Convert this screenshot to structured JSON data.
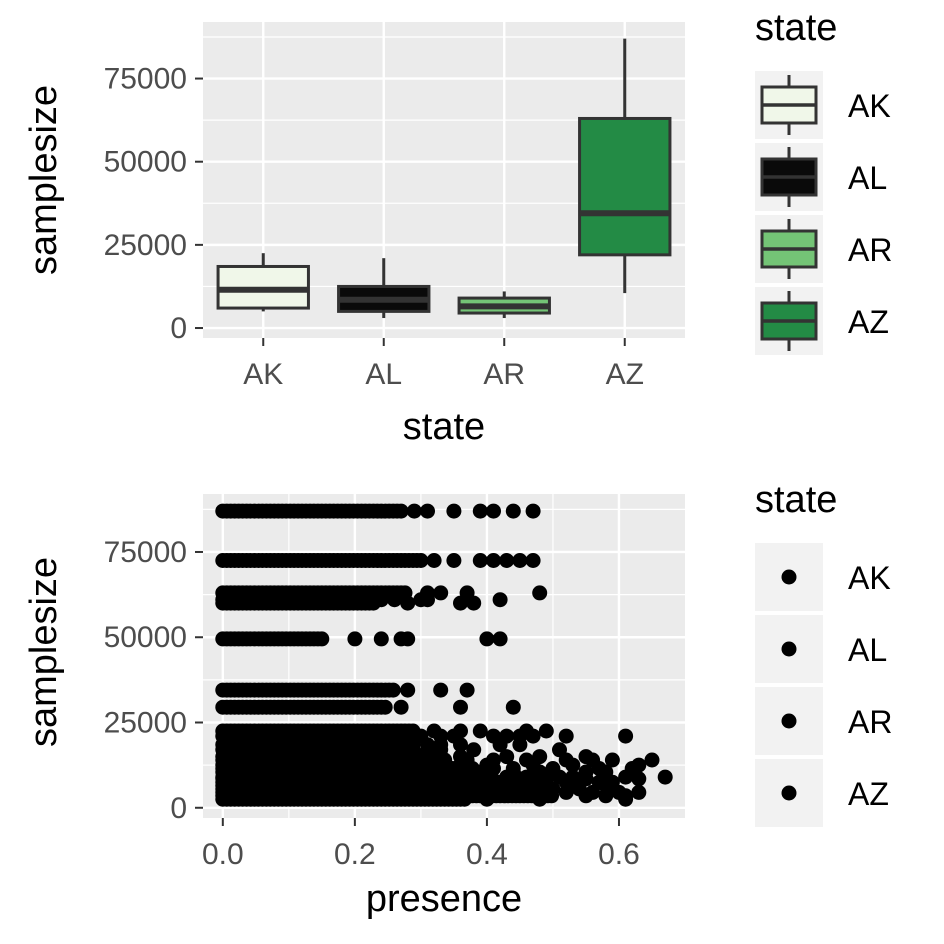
{
  "chart_data": [
    {
      "type": "box",
      "xlabel": "state",
      "ylabel": "samplesize",
      "categories": [
        "AK",
        "AL",
        "AR",
        "AZ"
      ],
      "ylim": [
        -3000,
        92000
      ],
      "yticks": [
        0,
        25000,
        50000,
        75000
      ],
      "grid": true,
      "legend": {
        "title": "state",
        "position": "right",
        "entries": [
          "AK",
          "AL",
          "AR",
          "AZ"
        ]
      },
      "boxes": [
        {
          "category": "AK",
          "min": 5000,
          "q1": 6000,
          "median": 11500,
          "q3": 18500,
          "max": 22500,
          "fill": "#f0f7e9"
        },
        {
          "category": "AL",
          "min": 3000,
          "q1": 5000,
          "median": 8500,
          "q3": 12500,
          "max": 21000,
          "fill": "#0a0a0a"
        },
        {
          "category": "AR",
          "min": 3000,
          "q1": 4500,
          "median": 6500,
          "q3": 9000,
          "max": 11000,
          "fill": "#74c476"
        },
        {
          "category": "AZ",
          "min": 10500,
          "q1": 22000,
          "median": 34500,
          "q3": 63000,
          "max": 87000,
          "fill": "#238b45"
        }
      ],
      "colors": {
        "panel": "#ebebeb",
        "outline": "#333333"
      }
    },
    {
      "type": "scatter",
      "xlabel": "presence",
      "ylabel": "samplesize",
      "xlim": [
        -0.03,
        0.7
      ],
      "ylim": [
        -3000,
        92000
      ],
      "xticks": [
        0.0,
        0.2,
        0.4,
        0.6
      ],
      "xtick_labels": [
        "0.0",
        "0.2",
        "0.4",
        "0.6"
      ],
      "yticks": [
        0,
        25000,
        50000,
        75000
      ],
      "grid": true,
      "legend": {
        "title": "state",
        "position": "right",
        "entries": [
          "AK",
          "AL",
          "AR",
          "AZ"
        ]
      },
      "point_color": "#000000",
      "bands": [
        {
          "y": 87000,
          "x_end": 0.27,
          "extra_x": [
            0.29,
            0.31,
            0.35,
            0.39,
            0.41,
            0.44,
            0.47
          ]
        },
        {
          "y": 72500,
          "x_end": 0.3,
          "extra_x": [
            0.32,
            0.35,
            0.39,
            0.41,
            0.43,
            0.45,
            0.47
          ]
        },
        {
          "y": 63000,
          "x_end": 0.28,
          "extra_x": [
            0.31,
            0.33,
            0.37,
            0.48
          ]
        },
        {
          "y": 61000,
          "x_end": 0.2,
          "extra_x": [
            0.22,
            0.24,
            0.26,
            0.3,
            0.31,
            0.42
          ]
        },
        {
          "y": 60000,
          "x_end": 0.23,
          "extra_x": [
            0.28,
            0.36,
            0.38
          ]
        },
        {
          "y": 49500,
          "x_end": 0.15,
          "extra_x": [
            0.2,
            0.24,
            0.27,
            0.28,
            0.4,
            0.42
          ]
        },
        {
          "y": 34500,
          "x_end": 0.26,
          "extra_x": [
            0.28,
            0.33,
            0.37
          ]
        },
        {
          "y": 29500,
          "x_end": 0.25,
          "extra_x": [
            0.27,
            0.36,
            0.44
          ]
        },
        {
          "y": 22500,
          "x_end": 0.29,
          "extra_x": [
            0.32,
            0.36,
            0.39,
            0.46,
            0.49
          ]
        },
        {
          "y": 21000,
          "x_end": 0.3,
          "extra_x": [
            0.33,
            0.35,
            0.41,
            0.43,
            0.45,
            0.47,
            0.52,
            0.61
          ]
        },
        {
          "y": 18500,
          "x_end": 0.29,
          "extra_x": [
            0.31,
            0.33,
            0.36,
            0.42,
            0.45
          ]
        },
        {
          "y": 17000,
          "x_end": 0.29,
          "extra_x": [
            0.31,
            0.33,
            0.38,
            0.51
          ]
        },
        {
          "y": 15000,
          "x_end": 0.33,
          "extra_x": [
            0.36,
            0.43,
            0.48,
            0.55
          ]
        },
        {
          "y": 14000,
          "x_end": 0.34,
          "extra_x": [
            0.37,
            0.41,
            0.46,
            0.52,
            0.56,
            0.59,
            0.65
          ]
        },
        {
          "y": 12500,
          "x_end": 0.33,
          "extra_x": [
            0.36,
            0.4,
            0.47,
            0.53,
            0.63
          ]
        },
        {
          "y": 11500,
          "x_end": 0.38,
          "extra_x": [
            0.41,
            0.44,
            0.5,
            0.57,
            0.62
          ]
        },
        {
          "y": 10500,
          "x_end": 0.39,
          "extra_x": [
            0.44,
            0.48,
            0.55,
            0.58
          ]
        },
        {
          "y": 9000,
          "x_end": 0.4,
          "extra_x": [
            0.43,
            0.46,
            0.51,
            0.53,
            0.61,
            0.67
          ]
        },
        {
          "y": 8500,
          "x_end": 0.41,
          "extra_x": [
            0.45,
            0.49,
            0.55,
            0.63
          ]
        },
        {
          "y": 7500,
          "x_end": 0.44,
          "extra_x": [
            0.47,
            0.52,
            0.57,
            0.59
          ]
        },
        {
          "y": 6500,
          "x_end": 0.46,
          "extra_x": [
            0.49,
            0.53,
            0.58
          ]
        },
        {
          "y": 5500,
          "x_end": 0.46,
          "extra_x": [
            0.5,
            0.54,
            0.59
          ]
        },
        {
          "y": 4500,
          "x_end": 0.48,
          "extra_x": [
            0.52,
            0.56,
            0.6,
            0.63
          ]
        },
        {
          "y": 3500,
          "x_end": 0.5,
          "extra_x": [
            0.55,
            0.58,
            0.61
          ]
        },
        {
          "y": 2500,
          "x_end": 0.37,
          "extra_x": [
            0.4,
            0.48,
            0.61
          ]
        }
      ]
    }
  ]
}
